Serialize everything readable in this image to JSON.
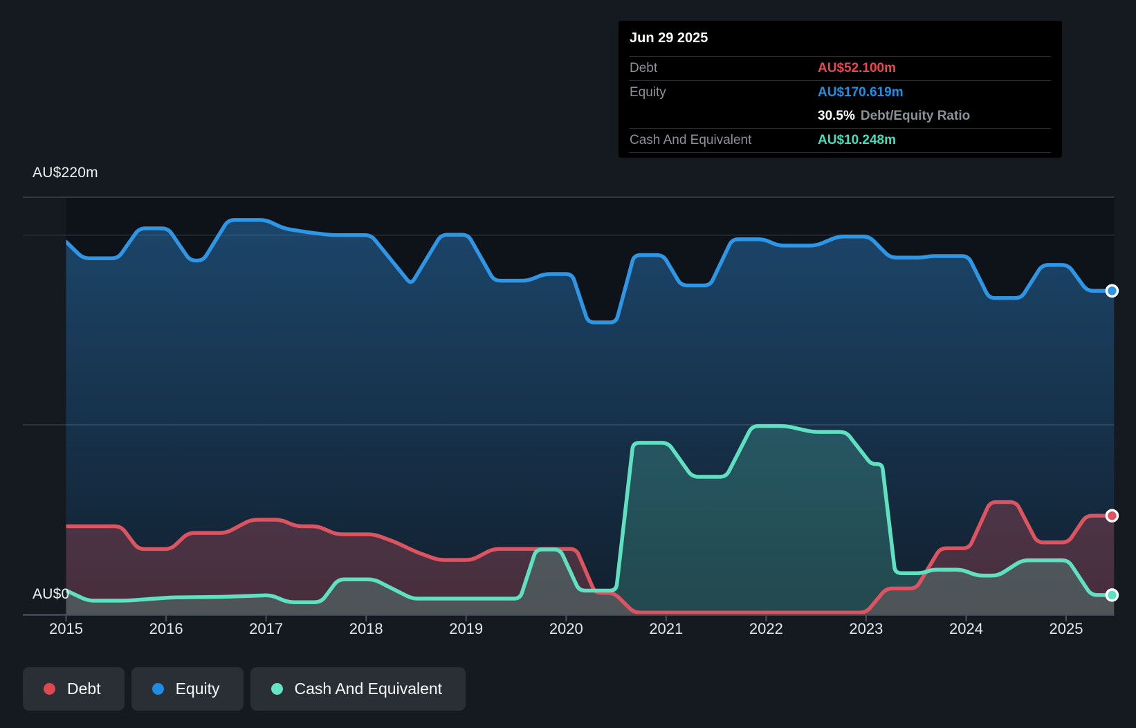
{
  "page": {
    "background": "#151a21"
  },
  "y_axis": {
    "top_label": "AU$220m",
    "zero_label": "AU$0"
  },
  "tooltip": {
    "date": "Jun 29 2025",
    "debt_label": "Debt",
    "debt_value": "AU$52.100m",
    "equity_label": "Equity",
    "equity_value": "AU$170.619m",
    "ratio_value": "30.5%",
    "ratio_label": "Debt/Equity Ratio",
    "cash_label": "Cash And Equivalent",
    "cash_value": "AU$10.248m"
  },
  "colors": {
    "debt_line": "#dc5460",
    "equity_line": "#2e96e4",
    "cash_line": "#5fe1c1",
    "debt_value_text": "#e8474e",
    "equity_value_text": "#1e90e4",
    "cash_value_text": "#40dfbb",
    "debt_dot": "#e2464e",
    "equity_dot": "#1e8ce2",
    "cash_dot": "#66e3c4"
  },
  "legend": {
    "items": [
      {
        "label": "Debt",
        "color": "#e2464e"
      },
      {
        "label": "Equity",
        "color": "#1e8ce2"
      },
      {
        "label": "Cash And Equivalent",
        "color": "#66e3c4"
      }
    ]
  },
  "chart_data": {
    "type": "area",
    "unit": "AU$ millions",
    "x_ticks": [
      2015,
      2016,
      2017,
      2018,
      2019,
      2020,
      2021,
      2022,
      2023,
      2024,
      2025
    ],
    "x_range": [
      2015.0,
      2025.48
    ],
    "y_range_m": [
      0,
      220
    ],
    "y_gridlines_m": [
      220,
      200,
      100,
      0
    ],
    "legend_position": "bottom-left",
    "hovered_point": {
      "date": "Jun 29 2025",
      "debt_m": 52.1,
      "equity_m": 170.619,
      "cash_m": 10.248,
      "debt_equity_ratio_pct": 30.5
    },
    "series": [
      {
        "name": "Debt",
        "color": "#dc5460",
        "fill": "rgba(220,84,96,0.27)",
        "points": [
          [
            2015.0,
            46.5
          ],
          [
            2015.55,
            46.5
          ],
          [
            2015.72,
            34.5
          ],
          [
            2016.05,
            34.5
          ],
          [
            2016.22,
            43.0
          ],
          [
            2016.6,
            43.0
          ],
          [
            2016.85,
            50.0
          ],
          [
            2017.15,
            50.0
          ],
          [
            2017.3,
            46.5
          ],
          [
            2017.52,
            46.5
          ],
          [
            2017.7,
            42.3
          ],
          [
            2018.08,
            42.3
          ],
          [
            2018.3,
            38.0
          ],
          [
            2018.5,
            33.0
          ],
          [
            2018.72,
            28.8
          ],
          [
            2019.06,
            28.8
          ],
          [
            2019.27,
            34.6
          ],
          [
            2020.1,
            34.6
          ],
          [
            2020.29,
            11.4
          ],
          [
            2020.48,
            11.4
          ],
          [
            2020.68,
            1.0
          ],
          [
            2023.0,
            1.0
          ],
          [
            2023.2,
            13.7
          ],
          [
            2023.5,
            13.7
          ],
          [
            2023.74,
            34.9
          ],
          [
            2024.03,
            34.9
          ],
          [
            2024.24,
            59.3
          ],
          [
            2024.5,
            59.3
          ],
          [
            2024.71,
            38.0
          ],
          [
            2025.02,
            38.0
          ],
          [
            2025.2,
            52.1
          ],
          [
            2025.48,
            52.1
          ]
        ]
      },
      {
        "name": "Equity",
        "color": "#2e96e4",
        "fill_gradient_top": "rgba(49,146,226,0.42)",
        "fill_gradient_bottom": "rgba(49,146,226,0.10)",
        "points": [
          [
            2015.0,
            196.5
          ],
          [
            2015.17,
            187.8
          ],
          [
            2015.52,
            187.8
          ],
          [
            2015.73,
            203.6
          ],
          [
            2016.02,
            203.6
          ],
          [
            2016.24,
            186.6
          ],
          [
            2016.37,
            186.6
          ],
          [
            2016.62,
            208.0
          ],
          [
            2017.0,
            208.0
          ],
          [
            2017.18,
            203.5
          ],
          [
            2017.42,
            201.5
          ],
          [
            2017.66,
            200.0
          ],
          [
            2018.05,
            200.0
          ],
          [
            2018.45,
            174.0
          ],
          [
            2018.75,
            200.2
          ],
          [
            2019.02,
            200.2
          ],
          [
            2019.28,
            176.0
          ],
          [
            2019.62,
            176.0
          ],
          [
            2019.78,
            179.5
          ],
          [
            2020.06,
            179.5
          ],
          [
            2020.22,
            154.0
          ],
          [
            2020.5,
            154.0
          ],
          [
            2020.68,
            189.5
          ],
          [
            2020.97,
            189.5
          ],
          [
            2021.15,
            173.5
          ],
          [
            2021.44,
            173.5
          ],
          [
            2021.66,
            197.8
          ],
          [
            2021.98,
            197.8
          ],
          [
            2022.12,
            194.5
          ],
          [
            2022.5,
            194.5
          ],
          [
            2022.72,
            199.3
          ],
          [
            2023.03,
            199.3
          ],
          [
            2023.24,
            188.2
          ],
          [
            2023.56,
            188.2
          ],
          [
            2023.65,
            189.0
          ],
          [
            2024.02,
            189.0
          ],
          [
            2024.23,
            166.8
          ],
          [
            2024.55,
            166.8
          ],
          [
            2024.76,
            184.3
          ],
          [
            2025.02,
            184.3
          ],
          [
            2025.21,
            170.619
          ],
          [
            2025.48,
            170.619
          ]
        ]
      },
      {
        "name": "Cash And Equivalent",
        "color": "#5fe1c1",
        "fill": "rgba(95,225,193,0.22)",
        "points": [
          [
            2015.0,
            12.7
          ],
          [
            2015.22,
            7.3
          ],
          [
            2015.62,
            7.3
          ],
          [
            2016.05,
            9.0
          ],
          [
            2016.55,
            9.3
          ],
          [
            2017.05,
            10.2
          ],
          [
            2017.22,
            6.5
          ],
          [
            2017.55,
            6.5
          ],
          [
            2017.72,
            18.5
          ],
          [
            2018.08,
            18.5
          ],
          [
            2018.46,
            8.4
          ],
          [
            2019.54,
            8.4
          ],
          [
            2019.7,
            34.3
          ],
          [
            2019.94,
            34.3
          ],
          [
            2020.13,
            12.6
          ],
          [
            2020.5,
            12.6
          ],
          [
            2020.67,
            90.5
          ],
          [
            2021.02,
            90.5
          ],
          [
            2021.26,
            72.6
          ],
          [
            2021.6,
            72.6
          ],
          [
            2021.86,
            99.4
          ],
          [
            2022.2,
            99.4
          ],
          [
            2022.46,
            96.3
          ],
          [
            2022.8,
            96.3
          ],
          [
            2023.05,
            79.3
          ],
          [
            2023.16,
            79.3
          ],
          [
            2023.29,
            21.8
          ],
          [
            2023.56,
            21.8
          ],
          [
            2023.66,
            23.6
          ],
          [
            2023.96,
            23.6
          ],
          [
            2024.11,
            20.5
          ],
          [
            2024.32,
            20.5
          ],
          [
            2024.56,
            28.6
          ],
          [
            2025.02,
            28.6
          ],
          [
            2025.25,
            10.248
          ],
          [
            2025.48,
            10.248
          ]
        ]
      }
    ]
  }
}
